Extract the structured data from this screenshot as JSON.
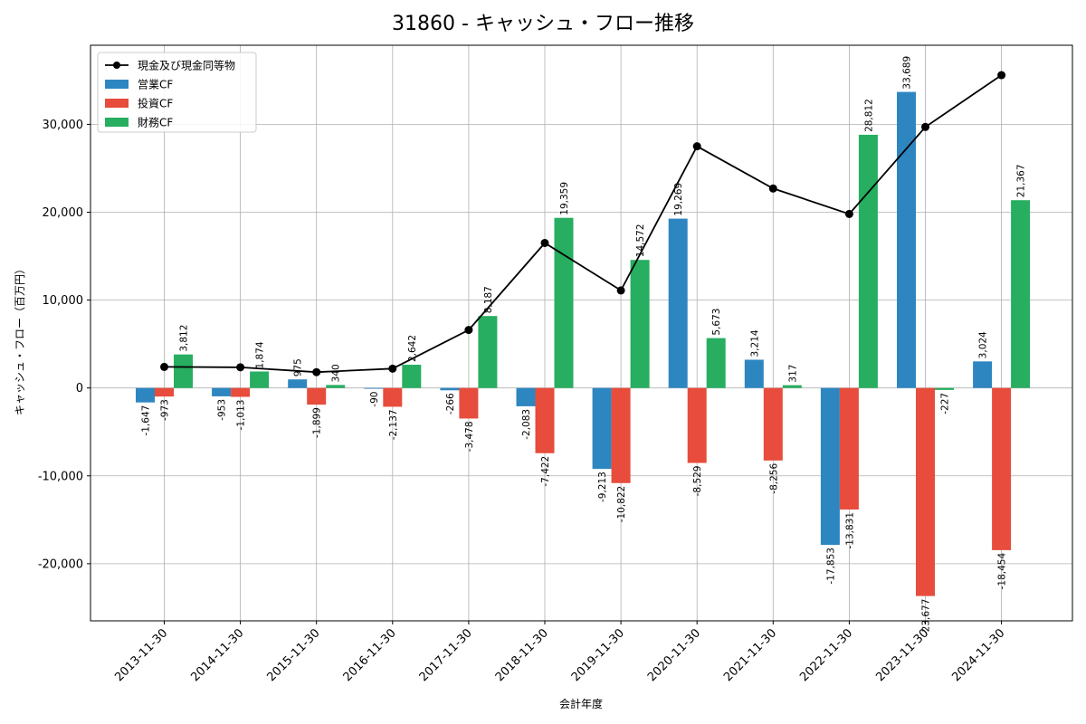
{
  "title": "31860 - キャッシュ・フロー推移",
  "chart_data": {
    "type": "bar",
    "title": "31860 - キャッシュ・フロー推移",
    "xlabel": "会計年度",
    "ylabel": "キャッシュ・フロー（百万円）",
    "categories": [
      "2013-11-30",
      "2014-11-30",
      "2015-11-30",
      "2016-11-30",
      "2017-11-30",
      "2018-11-30",
      "2019-11-30",
      "2020-11-30",
      "2021-11-30",
      "2022-11-30",
      "2023-11-30",
      "2024-11-30"
    ],
    "ylim": [
      -26500,
      39000
    ],
    "yticks": [
      -20000,
      -10000,
      0,
      10000,
      20000,
      30000
    ],
    "ytick_labels": [
      "-20,000",
      "-10,000",
      "0",
      "10,000",
      "20,000",
      "30,000"
    ],
    "grid": true,
    "legend_position": "top-left",
    "series": [
      {
        "name": "営業CF",
        "color": "#2e86c1",
        "kind": "bar",
        "values": [
          -1647,
          -953,
          975,
          -90,
          -266,
          -2083,
          -9213,
          19269,
          3214,
          -17853,
          33689,
          3024
        ],
        "labels": [
          "-1,647",
          "-953",
          "975",
          "-90",
          "-266",
          "-2,083",
          "-9,213",
          "19,269",
          "3,214",
          "-17,853",
          "33,689",
          "3,024"
        ]
      },
      {
        "name": "投資CF",
        "color": "#e74c3c",
        "kind": "bar",
        "values": [
          -973,
          -1013,
          -1899,
          -2137,
          -3478,
          -7422,
          -10822,
          -8529,
          -8256,
          -13831,
          -23677,
          -18454
        ],
        "labels": [
          "-973",
          "-1,013",
          "-1,899",
          "-2,137",
          "-3,478",
          "-7,422",
          "-10,822",
          "-8,529",
          "-8,256",
          "-13,831",
          "-23,677",
          "-18,454"
        ]
      },
      {
        "name": "財務CF",
        "color": "#27ae60",
        "kind": "bar",
        "values": [
          3812,
          1874,
          340,
          2642,
          8187,
          19359,
          14572,
          5673,
          317,
          28812,
          -227,
          21367
        ],
        "labels": [
          "3,812",
          "1,874",
          "340",
          "2,642",
          "8,187",
          "19,359",
          "14,572",
          "5,673",
          "317",
          "28,812",
          "-227",
          "21,367"
        ]
      },
      {
        "name": "現金及び現金同等物",
        "color": "#000000",
        "kind": "line",
        "values": [
          2400,
          2350,
          1800,
          2200,
          6600,
          16500,
          11100,
          27500,
          22700,
          19800,
          29700,
          35600
        ]
      }
    ]
  }
}
